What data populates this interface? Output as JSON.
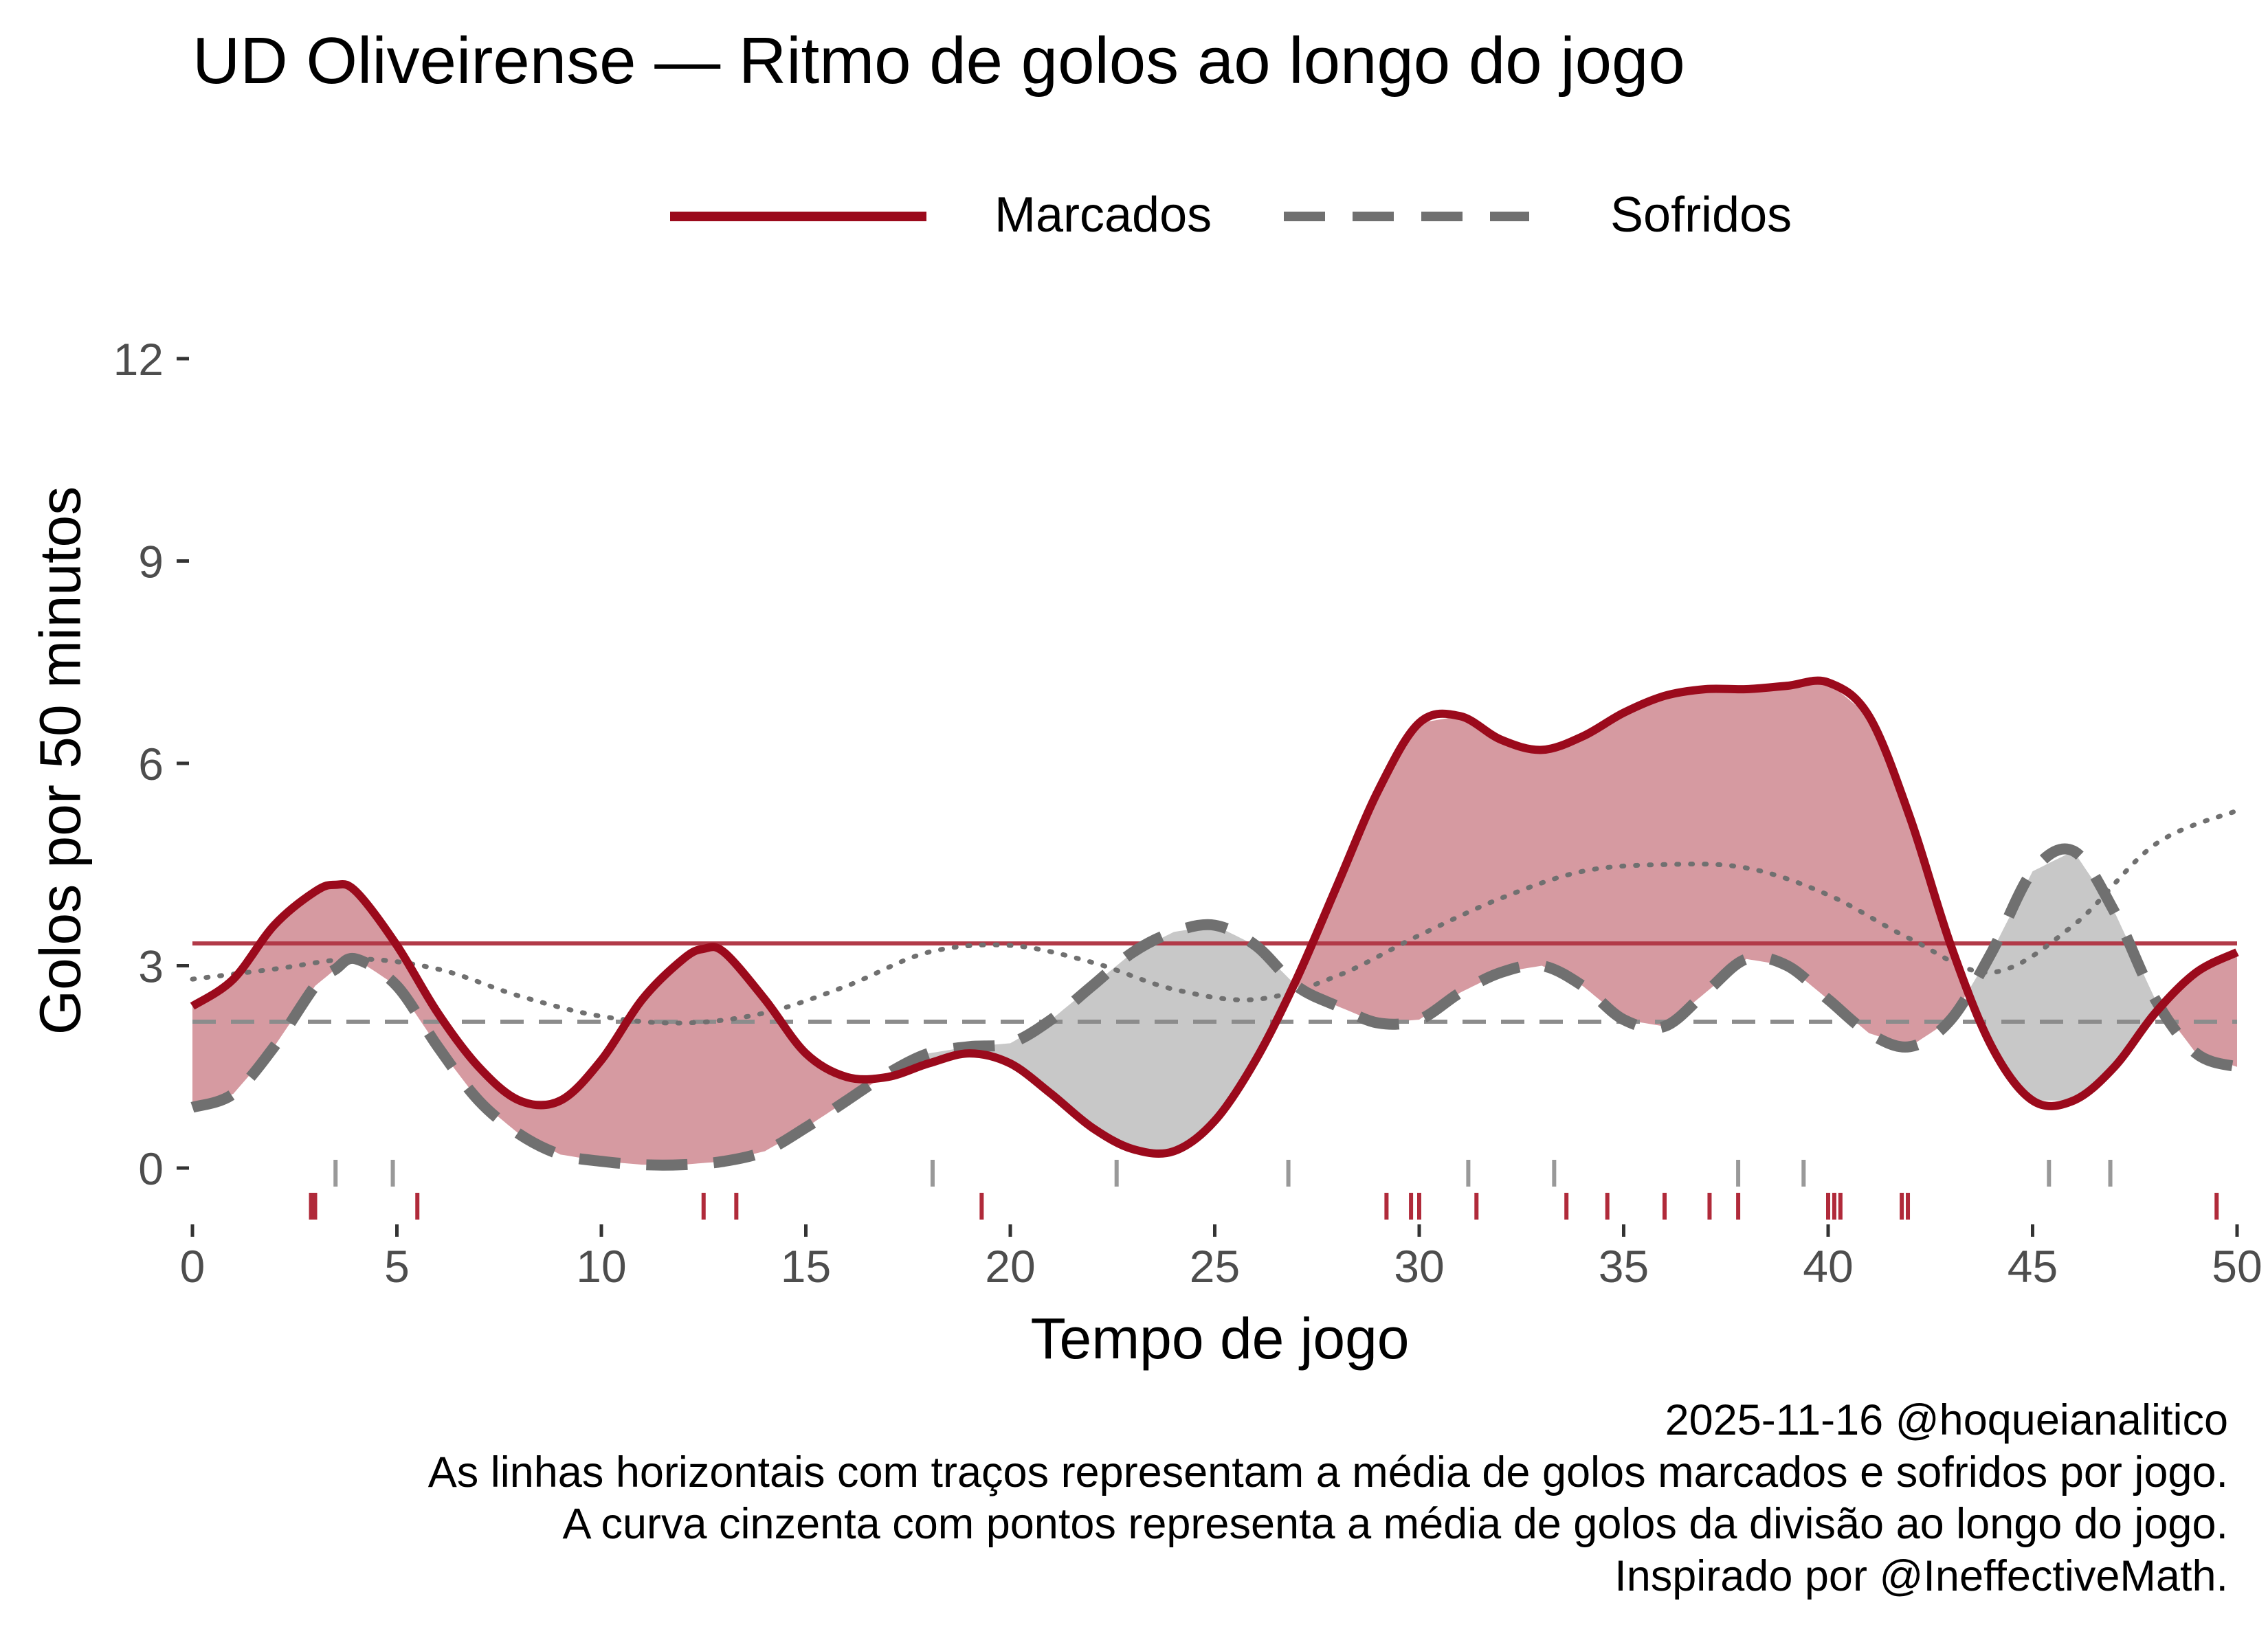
{
  "chart_data": {
    "type": "line",
    "title": "UD Oliveirense — Ritmo de golos ao longo do jogo",
    "xlabel": "Tempo de jogo",
    "ylabel": "Golos por 50 minutos",
    "xlim": [
      0,
      50
    ],
    "ylim": [
      0,
      12
    ],
    "x_ticks": [
      0,
      5,
      10,
      15,
      20,
      25,
      30,
      35,
      40,
      45,
      50
    ],
    "y_ticks": [
      0,
      3,
      6,
      9,
      12
    ],
    "legend": {
      "position": "top",
      "entries": [
        "Marcados",
        "Sofridos"
      ]
    },
    "colors": {
      "marcados": "#9b0a1c",
      "sofridos": "#707070",
      "fill_marcados": "#d69aa1",
      "fill_sofridos": "#c8c8c8",
      "division": "#707070",
      "rug_marcados": "#b02a3a",
      "rug_sofridos": "#999999"
    },
    "series": [
      {
        "name": "Marcados",
        "style": "solid",
        "x": [
          0,
          1,
          2,
          3,
          3.5,
          4,
          5,
          6,
          7,
          8,
          9,
          10,
          11,
          12,
          12.5,
          13,
          14,
          15,
          16,
          17,
          18,
          19,
          20,
          21,
          22,
          23,
          24,
          25,
          26,
          27,
          28,
          29,
          30,
          31,
          32,
          33,
          34,
          35,
          36,
          37,
          38,
          39,
          40,
          41,
          42,
          43,
          44,
          45,
          46,
          47,
          48,
          49,
          50
        ],
        "values": [
          2.4,
          2.8,
          3.6,
          4.1,
          4.2,
          4.1,
          3.3,
          2.3,
          1.5,
          1.0,
          1.0,
          1.6,
          2.5,
          3.1,
          3.25,
          3.2,
          2.5,
          1.7,
          1.35,
          1.35,
          1.55,
          1.7,
          1.55,
          1.1,
          0.6,
          0.28,
          0.25,
          0.7,
          1.6,
          2.8,
          4.2,
          5.6,
          6.6,
          6.7,
          6.35,
          6.2,
          6.4,
          6.75,
          7.0,
          7.1,
          7.1,
          7.15,
          7.2,
          6.7,
          5.2,
          3.3,
          1.8,
          1.0,
          1.0,
          1.5,
          2.3,
          2.9,
          3.2
        ]
      },
      {
        "name": "Sofridos",
        "style": "dashed",
        "x": [
          0,
          1,
          2,
          3,
          3.5,
          4,
          5,
          6,
          7,
          8,
          9,
          10,
          11,
          12,
          13,
          14,
          15,
          16,
          17,
          18,
          19,
          20,
          21,
          22,
          23,
          24,
          25,
          26,
          27,
          28,
          29,
          30,
          31,
          32,
          33,
          34,
          35,
          36,
          37,
          38,
          39,
          40,
          41,
          42,
          43,
          44,
          45,
          46,
          47,
          48,
          49,
          50
        ],
        "values": [
          0.9,
          1.1,
          1.8,
          2.7,
          2.95,
          3.1,
          2.7,
          1.8,
          1.0,
          0.5,
          0.2,
          0.1,
          0.05,
          0.05,
          0.1,
          0.25,
          0.6,
          1.0,
          1.4,
          1.7,
          1.8,
          1.85,
          2.2,
          2.7,
          3.2,
          3.5,
          3.6,
          3.3,
          2.7,
          2.4,
          2.15,
          2.2,
          2.6,
          2.9,
          3.0,
          2.7,
          2.2,
          2.1,
          2.6,
          3.1,
          3.0,
          2.5,
          2.0,
          1.8,
          2.2,
          3.2,
          4.4,
          4.7,
          3.8,
          2.5,
          1.7,
          1.5
        ]
      },
      {
        "name": "Média da divisão",
        "style": "dotted",
        "x": [
          0,
          2,
          4,
          6,
          8,
          10,
          12,
          14,
          16,
          18,
          20,
          22,
          24,
          26,
          28,
          30,
          32,
          34,
          36,
          38,
          40,
          42,
          44,
          46,
          48,
          50
        ],
        "values": [
          2.8,
          2.95,
          3.1,
          2.95,
          2.55,
          2.25,
          2.15,
          2.3,
          2.7,
          3.2,
          3.3,
          3.05,
          2.65,
          2.5,
          2.85,
          3.45,
          4.0,
          4.4,
          4.5,
          4.45,
          4.05,
          3.4,
          2.9,
          3.6,
          4.8,
          5.3
        ]
      }
    ],
    "reference_lines": [
      {
        "name": "Média marcados por jogo",
        "y": 3.33,
        "style": "solid"
      },
      {
        "name": "Média sofridos por jogo",
        "y": 2.17,
        "style": "dashed"
      }
    ],
    "rug_marcados": [
      2.9,
      3.0,
      5.5,
      12.5,
      13.3,
      19.3,
      29.2,
      29.8,
      30.0,
      31.4,
      33.6,
      34.6,
      36.0,
      37.1,
      37.8,
      40.0,
      40.15,
      40.3,
      41.8,
      41.95,
      49.5
    ],
    "rug_sofridos": [
      3.5,
      4.9,
      18.1,
      22.6,
      26.8,
      31.2,
      33.3,
      37.8,
      39.4,
      45.4,
      46.9
    ],
    "caption": [
      "2025-11-16 @hoqueianalitico",
      "As linhas horizontais com traços representam a média de golos marcados e sofridos por jogo.",
      "A curva cinzenta com pontos representa a média de golos da divisão ao longo do jogo.",
      "Inspirado por @IneffectiveMath."
    ]
  }
}
